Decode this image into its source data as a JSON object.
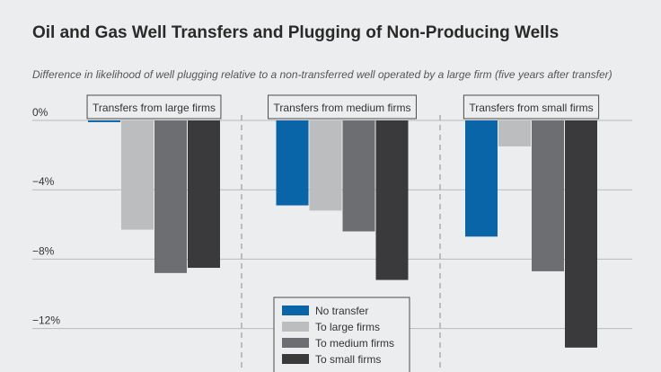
{
  "title": "Oil and Gas Well Transfers and Plugging of Non-Producing Wells",
  "subtitle": "Difference in likelihood of well plugging relative to a non-transferred well operated by a large firm (five years after transfer)",
  "colors": {
    "background": "#ecedee",
    "No transfer": "#0a64a8",
    "To large firms": "#bcbdbf",
    "To medium firms": "#6d6e71",
    "To small firms": "#3a3a3c",
    "gridline": "#b8b9bb",
    "separator": "#8a8b8d"
  },
  "chart_data": {
    "type": "bar",
    "title": "Oil and Gas Well Transfers and Plugging of Non-Producing Wells",
    "subtitle": "Difference in likelihood of well plugging relative to a non-transferred well operated by a large firm (five years after transfer)",
    "xlabel": "",
    "ylabel": "",
    "ylim": [
      -14.4,
      0
    ],
    "yticks": [
      0,
      -4,
      -8,
      -12
    ],
    "ytick_labels": [
      "0%",
      "−4%",
      "−8%",
      "−12%"
    ],
    "grid": true,
    "panels": [
      "Transfers from large firms",
      "Transfers from medium firms",
      "Transfers from small firms"
    ],
    "series": [
      {
        "name": "No transfer",
        "values": [
          -0.1,
          -4.9,
          -6.7
        ]
      },
      {
        "name": "To large firms",
        "values": [
          -6.3,
          -5.2,
          -1.5
        ]
      },
      {
        "name": "To medium firms",
        "values": [
          -8.8,
          -6.4,
          -8.7
        ]
      },
      {
        "name": "To small firms",
        "values": [
          -8.5,
          -9.2,
          -13.1
        ]
      }
    ],
    "legend": {
      "position": "bottom-center",
      "entries": [
        "No transfer",
        "To large firms",
        "To medium firms",
        "To small firms"
      ]
    }
  }
}
